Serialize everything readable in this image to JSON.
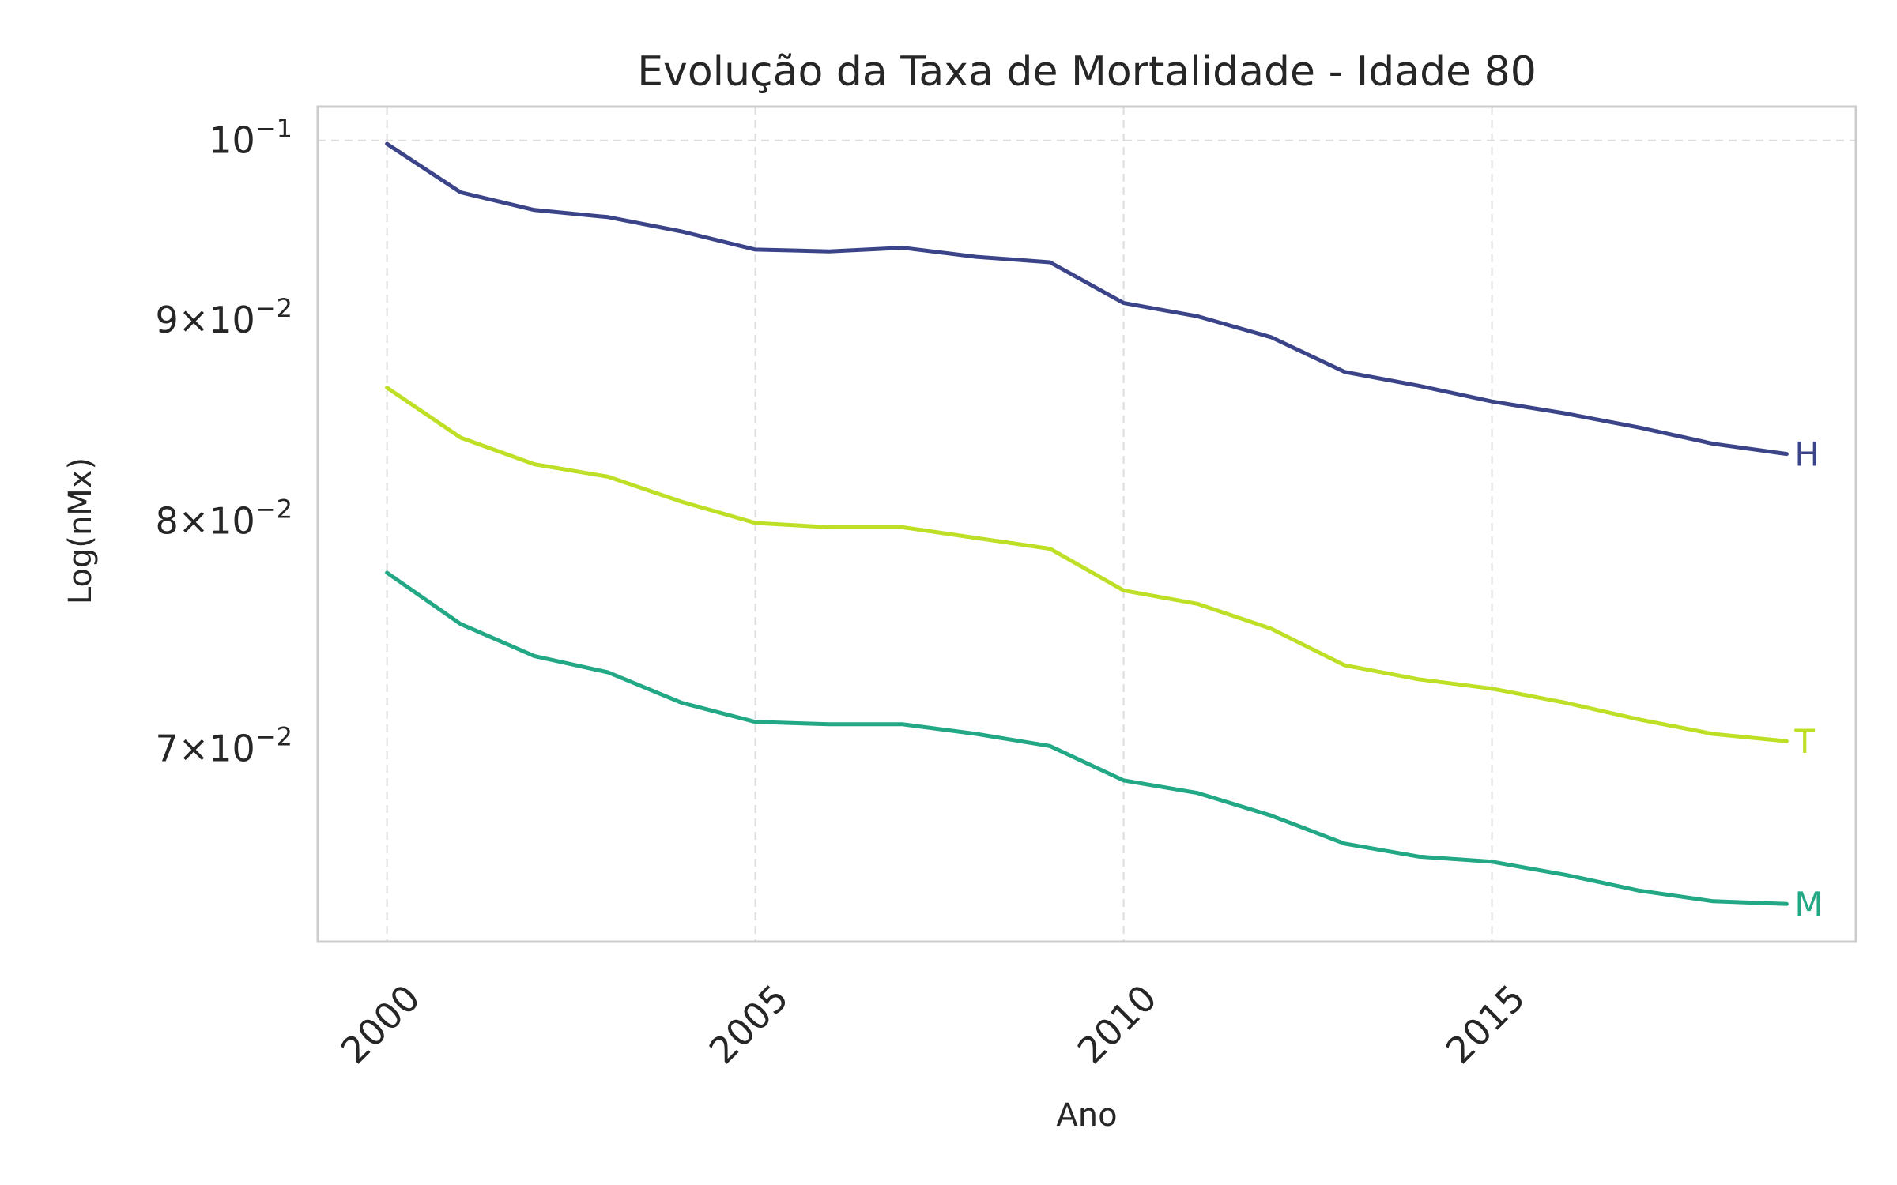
{
  "chart_data": {
    "type": "line",
    "title": "Evolução da Taxa de Mortalidade - Idade 80",
    "xlabel": "Ano",
    "ylabel": "Log(nMx)",
    "yscale": "log",
    "xlim": [
      1999.06,
      2019.94
    ],
    "ylim": [
      0.0625,
      0.102
    ],
    "grid": true,
    "x_ticks": [
      2000,
      2005,
      2010,
      2015
    ],
    "x_tick_labels": [
      "2000",
      "2005",
      "2010",
      "2015"
    ],
    "y_ticks": [
      {
        "value": 0.1,
        "base": "10",
        "exp": "−1"
      },
      {
        "value": 0.09,
        "mant": "9",
        "base": "10",
        "exp": "−2"
      },
      {
        "value": 0.08,
        "mant": "8",
        "base": "10",
        "exp": "−2"
      },
      {
        "value": 0.07,
        "mant": "7",
        "base": "10",
        "exp": "−2"
      }
    ],
    "x": [
      2000,
      2001,
      2002,
      2003,
      2004,
      2005,
      2006,
      2007,
      2008,
      2009,
      2010,
      2011,
      2012,
      2013,
      2014,
      2015,
      2016,
      2017,
      2018,
      2019
    ],
    "series": [
      {
        "name": "H",
        "color": "#3b4488",
        "values": [
          0.0998,
          0.097,
          0.096,
          0.0956,
          0.0948,
          0.0938,
          0.0937,
          0.0939,
          0.0934,
          0.0931,
          0.0909,
          0.0902,
          0.0891,
          0.0873,
          0.0866,
          0.0858,
          0.0852,
          0.0845,
          0.0837,
          0.0832
        ]
      },
      {
        "name": "T",
        "color": "#bddf26",
        "values": [
          0.0865,
          0.084,
          0.0827,
          0.0821,
          0.0809,
          0.0799,
          0.0797,
          0.0797,
          0.0792,
          0.0787,
          0.0768,
          0.0762,
          0.0751,
          0.0735,
          0.0729,
          0.0725,
          0.0719,
          0.0712,
          0.0706,
          0.0703
        ]
      },
      {
        "name": "M",
        "color": "#22a884",
        "values": [
          0.0776,
          0.0753,
          0.0739,
          0.0732,
          0.0719,
          0.0711,
          0.071,
          0.071,
          0.0706,
          0.0701,
          0.0687,
          0.0682,
          0.0673,
          0.0662,
          0.0657,
          0.0655,
          0.065,
          0.0644,
          0.064,
          0.0639
        ]
      }
    ]
  }
}
